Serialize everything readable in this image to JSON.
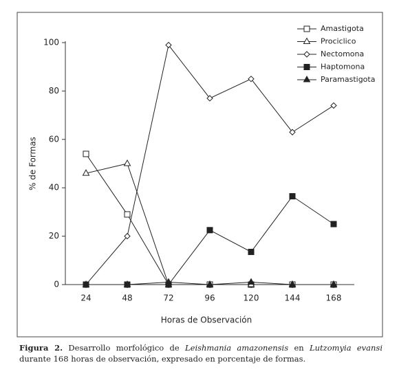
{
  "chart_data": {
    "type": "line",
    "x": [
      24,
      48,
      72,
      96,
      120,
      144,
      168
    ],
    "xlim": [
      12,
      180
    ],
    "ylim": [
      0,
      100
    ],
    "yticks": [
      0,
      20,
      40,
      60,
      80,
      100
    ],
    "xlabel": "Horas de Observación",
    "ylabel": "% de Formas",
    "legend": "upper right",
    "series": [
      {
        "name": "Amastigota",
        "color": "#222222",
        "marker": "square-open",
        "values": [
          54,
          29,
          0,
          0,
          0,
          0,
          0
        ]
      },
      {
        "name": "Prociclico",
        "color": "#222222",
        "marker": "triangle-open",
        "values": [
          46,
          50,
          0,
          0,
          0,
          0,
          0
        ]
      },
      {
        "name": "Nectomona",
        "color": "#222222",
        "marker": "diamond-open",
        "values": [
          0,
          20,
          99,
          77,
          85,
          63,
          74
        ]
      },
      {
        "name": "Haptomona",
        "color": "#222222",
        "marker": "square-filled",
        "values": [
          0,
          0,
          0,
          22.5,
          13.5,
          36.5,
          25
        ]
      },
      {
        "name": "Paramastigota",
        "color": "#222222",
        "marker": "triangle-filled",
        "values": [
          0,
          0,
          1,
          0,
          1,
          0,
          0
        ]
      }
    ]
  },
  "caption": {
    "label": "Figura 2.",
    "text1": "Desarrollo morfológico de",
    "species1": "Leishmania amazonensis",
    "text2": "en",
    "species2": "Lutzomyia evansi",
    "text3": "durante 168 horas de observación, expresado en porcentaje de formas."
  }
}
